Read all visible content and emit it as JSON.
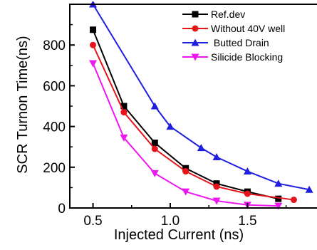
{
  "chart_data": {
    "type": "line",
    "title": "",
    "xlabel": "Injected Current (ns)",
    "ylabel": "SCR Turnon Time(ns)",
    "xlim": [
      0.35,
      1.95
    ],
    "ylim": [
      0,
      1000
    ],
    "xticks": [
      "0.5",
      "1.0",
      "1.5"
    ],
    "yticks": [
      "0",
      "200",
      "400",
      "600",
      "800"
    ],
    "legend_position": "top-right",
    "grid": false,
    "series": [
      {
        "name": "Ref.dev",
        "color": "#000000",
        "marker": "square",
        "x": [
          0.5,
          0.7,
          0.9,
          1.1,
          1.3,
          1.5,
          1.7
        ],
        "y": [
          875,
          500,
          320,
          195,
          120,
          80,
          45
        ]
      },
      {
        "name": "Without 40V well",
        "color": "#e8141b",
        "marker": "circle",
        "x": [
          0.5,
          0.7,
          0.9,
          1.1,
          1.3,
          1.5,
          1.8
        ],
        "y": [
          800,
          470,
          290,
          180,
          105,
          70,
          40
        ]
      },
      {
        "name": " Butted Drain",
        "color": "#1f1fe0",
        "marker": "triangle-up",
        "x": [
          0.5,
          0.9,
          1.0,
          1.2,
          1.3,
          1.5,
          1.7,
          1.9
        ],
        "y": [
          1000,
          500,
          400,
          295,
          250,
          180,
          120,
          90
        ]
      },
      {
        "name": "Silicide Blocking",
        "color": "#ee18ee",
        "marker": "triangle-down",
        "x": [
          0.5,
          0.7,
          0.9,
          1.1,
          1.3,
          1.5,
          1.7
        ],
        "y": [
          710,
          345,
          170,
          80,
          35,
          15,
          10
        ]
      }
    ]
  }
}
